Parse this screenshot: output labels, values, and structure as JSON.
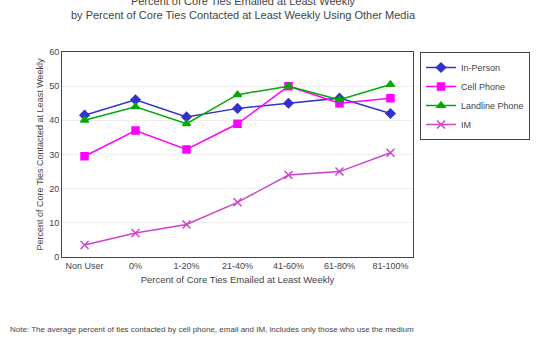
{
  "chart_data": {
    "type": "line",
    "title": "Percent of Core Ties Emailed at Least Weekly",
    "subtitle": "by Percent of Core Ties Contacted at Least Weekly Using Other Media",
    "x_label": "Percent of Core Ties Emailed at Least Weekly",
    "y_label": "Percent of Core Ties Contacted at Least Weekly",
    "annotations": [
      "Note: The average percent of ties contacted by cell phone, email and IM, includes only those who use the medium"
    ],
    "categories": [
      "Non User",
      "0%",
      "1-20%",
      "21-40%",
      "41-60%",
      "61-80%",
      "81-100%"
    ],
    "series": [
      {
        "name": "In-Person",
        "color": "#3333CC",
        "marker": "diamond",
        "values": [
          41.5,
          46,
          41,
          43.5,
          45,
          46.5,
          42
        ]
      },
      {
        "name": "Cell Phone",
        "color": "#FF00FF",
        "marker": "square",
        "values": [
          29.5,
          37,
          31.5,
          39,
          50,
          45,
          46.5
        ]
      },
      {
        "name": "Landline Phone",
        "color": "#00AA00",
        "marker": "triangle-up",
        "values": [
          40,
          44,
          39,
          47.5,
          50,
          46,
          50.5
        ]
      },
      {
        "name": "IM",
        "color": "#CC44CC",
        "marker": "x",
        "values": [
          3.5,
          7,
          9.5,
          16,
          24,
          25,
          30.5
        ]
      }
    ],
    "ylim": [
      0,
      60
    ],
    "yticks": [
      0,
      10,
      20,
      30,
      40,
      50,
      60
    ],
    "grid": true,
    "legend": "right"
  }
}
